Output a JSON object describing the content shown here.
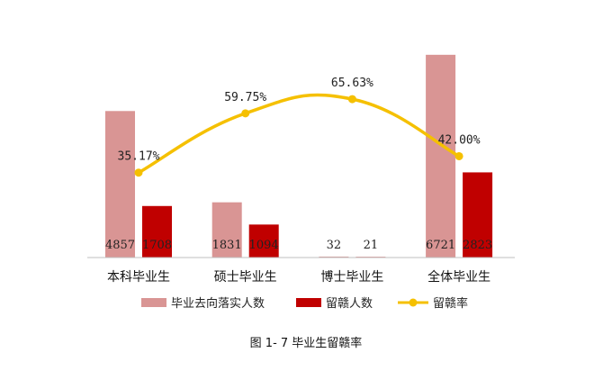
{
  "caption": "图 1- 7 毕业生留赣率",
  "chart_data": {
    "type": "bar",
    "categories": [
      "本科毕业生",
      "硕士毕业生",
      "博士毕业生",
      "全体毕业生"
    ],
    "series": [
      {
        "name": "毕业去向落实人数",
        "type": "bar",
        "values": [
          4857,
          1831,
          32,
          6721
        ],
        "labels": [
          "4857",
          "1831",
          "32",
          "6721"
        ],
        "color": "#d99594"
      },
      {
        "name": "留赣人数",
        "type": "bar",
        "values": [
          1708,
          1094,
          21,
          2823
        ],
        "labels": [
          "1708",
          "1094",
          "21",
          "2823"
        ],
        "color": "#c00000"
      },
      {
        "name": "留赣率",
        "type": "line",
        "axis": "secondary",
        "values": [
          35.17,
          59.75,
          65.63,
          42.0
        ],
        "labels": [
          "35.17%",
          "59.75%",
          "65.63%",
          "42.00%"
        ],
        "color": "#f5c000"
      }
    ],
    "ylim": [
      0,
      8000
    ],
    "y2lim": [
      0,
      100
    ],
    "legend_position": "bottom",
    "grid": false
  }
}
